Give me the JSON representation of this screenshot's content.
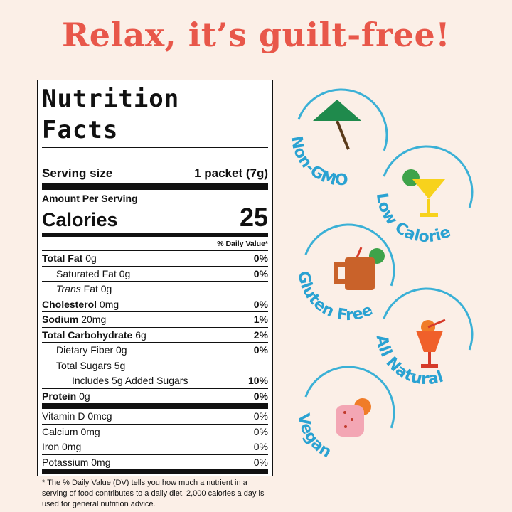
{
  "headline": "Relax, it’s guilt-free!",
  "label": {
    "title": "Nutrition Facts",
    "serving_size_label": "Serving size",
    "serving_size": "1 packet (7g)",
    "amount_per_serving": "Amount Per Serving",
    "calories_label": "Calories",
    "calories": "25",
    "daily_value_header": "% Daily Value*",
    "nutrients": [
      {
        "name": "Total Fat",
        "amount": "0g",
        "dv": "0%"
      },
      {
        "name": "Saturated Fat 0g",
        "dv": "0%"
      },
      {
        "name_italic": "Trans",
        "name": "Fat 0g"
      },
      {
        "name": "Cholesterol",
        "amount": "0mg",
        "dv": "0%"
      },
      {
        "name": "Sodium",
        "amount": "20mg",
        "dv": "1%"
      },
      {
        "name": "Total Carbohydrate",
        "amount": "6g",
        "dv": "2%"
      },
      {
        "name": "Dietary Fiber 0g",
        "dv": "0%"
      },
      {
        "name": "Total Sugars 5g"
      },
      {
        "name": "Includes 5g Added Sugars",
        "dv": "10%"
      },
      {
        "name": "Protein",
        "amount": "0g",
        "dv": "0%"
      }
    ],
    "vitamins": [
      {
        "name": "Vitamin D 0mcg",
        "dv": "0%"
      },
      {
        "name": "Calcium 0mg",
        "dv": "0%"
      },
      {
        "name": "Iron 0mg",
        "dv": "0%"
      },
      {
        "name": "Potassium 0mg",
        "dv": "0%"
      }
    ],
    "footnote": "* The % Daily Value (DV) tells you how much a nutrient in a serving of food contributes to a daily diet. 2,000 calories a day is used for general nutrition advice."
  },
  "badges": [
    "Non-GMO",
    "Low Calorie",
    "Gluten Free",
    "All Natural",
    "Vegan"
  ]
}
